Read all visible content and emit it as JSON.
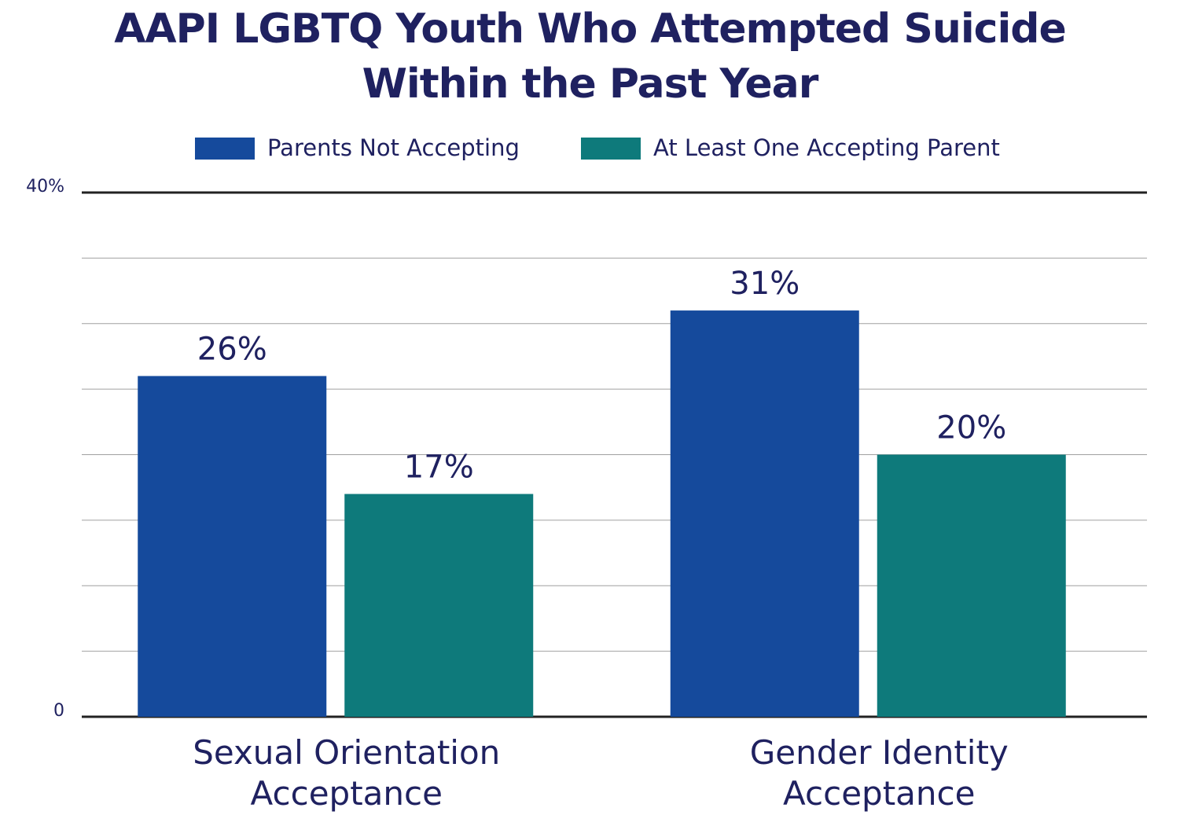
{
  "chart_data": {
    "type": "bar",
    "title": "AAPI LGBTQ Youth Who Attempted Suicide Within the Past Year",
    "categories": [
      "Sexual Orientation Acceptance",
      "Gender Identity Acceptance"
    ],
    "series": [
      {
        "name": "Parents Not Accepting",
        "color": "#154a9c",
        "values": [
          26,
          31
        ],
        "value_labels": [
          "26%",
          "31%"
        ]
      },
      {
        "name": "At Least One Accepting Parent",
        "color": "#0e7a7b",
        "values": [
          17,
          20
        ],
        "value_labels": [
          "17%",
          "20%"
        ]
      }
    ],
    "ylim": [
      0,
      40
    ],
    "yticks": [
      0,
      {
        "value": 40,
        "label": "40%"
      }
    ],
    "minor_grid": [
      5,
      10,
      15,
      20,
      25,
      30,
      35
    ],
    "grid": true,
    "legend": "top"
  }
}
